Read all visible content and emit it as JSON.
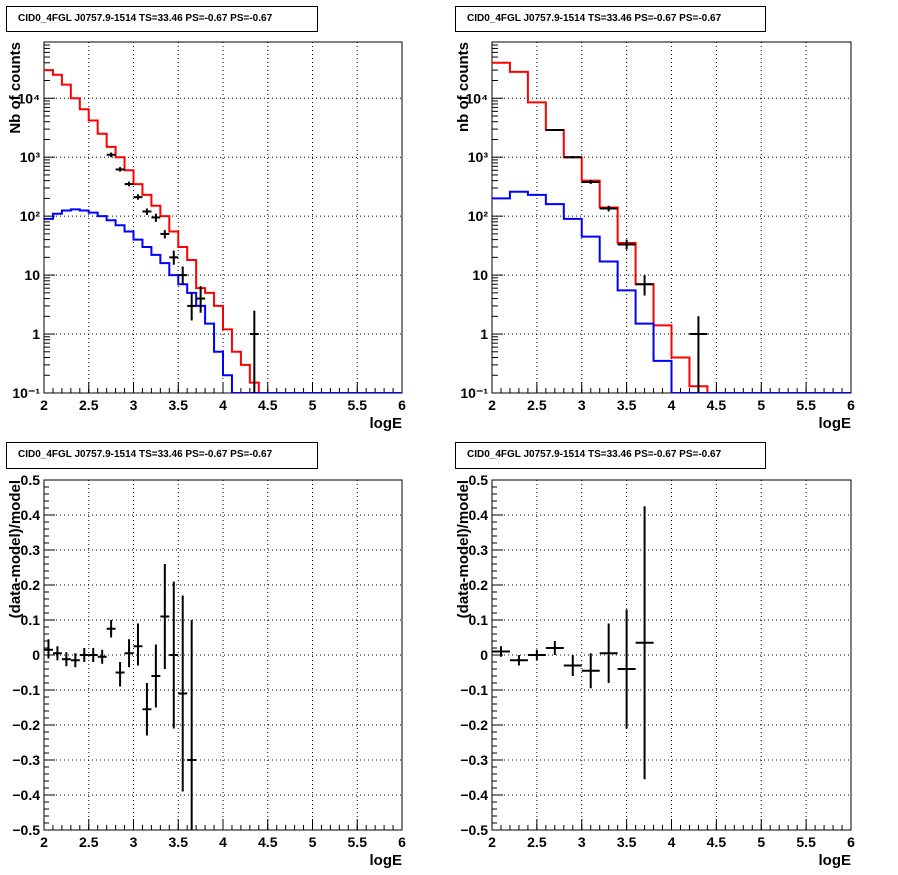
{
  "chart_data": [
    {
      "type": "line",
      "title": "CID0_4FGL J0757.9-1514 TS=33.46 PS=-0.67 PS=-0.67",
      "xlabel": "logE",
      "ylabel": "Nb of counts",
      "xlim": [
        2,
        6
      ],
      "ylim": [
        0.1,
        90000
      ],
      "log_y": true,
      "grid": true,
      "x_ticks": [
        "2",
        "2.5",
        "3",
        "3.5",
        "4",
        "4.5",
        "5",
        "5.5",
        "6"
      ],
      "y_ticks": [
        {
          "value": 0.1,
          "label": "10⁻¹"
        },
        {
          "value": 1,
          "label": "1"
        },
        {
          "value": 10,
          "label": "10"
        },
        {
          "value": 100,
          "label": "10²"
        },
        {
          "value": 1000,
          "label": "10³"
        },
        {
          "value": 10000,
          "label": "10⁴"
        }
      ],
      "bin_edges": [
        2.0,
        2.1,
        2.2,
        2.3,
        2.4,
        2.5,
        2.6,
        2.7,
        2.8,
        2.9,
        3.0,
        3.1,
        3.2,
        3.3,
        3.4,
        3.5,
        3.6,
        3.7,
        3.8,
        3.9,
        4.0,
        4.1,
        4.2,
        4.3,
        4.4,
        4.5,
        4.6,
        4.7,
        4.8,
        4.9,
        5.0,
        5.1,
        5.2,
        5.3,
        5.4,
        5.5,
        5.6,
        5.7,
        5.8,
        5.9,
        6.0
      ],
      "series": [
        {
          "color": "#ff0000",
          "style": "hist",
          "values": [
            30000,
            25000,
            17000,
            10000,
            6500,
            4200,
            2500,
            1500,
            1000,
            600,
            350,
            230,
            150,
            100,
            55,
            30,
            18,
            6,
            5,
            3,
            1.2,
            0.5,
            0.3,
            0.15,
            0.1,
            0.1,
            0.1,
            0.1,
            0.1,
            0.1,
            0.1,
            0.1,
            0.1,
            0.1,
            0.1,
            0.1,
            0.1,
            0.1,
            0.1,
            0.1
          ]
        },
        {
          "color": "#0000ff",
          "style": "hist",
          "values": [
            90,
            110,
            125,
            130,
            125,
            115,
            100,
            85,
            70,
            55,
            40,
            30,
            22,
            16,
            10,
            7,
            5,
            3,
            1.5,
            0.5,
            0.2,
            0.1,
            0.1,
            0.1,
            0.1,
            0.1,
            0.1,
            0.1,
            0.1,
            0.1,
            0.1,
            0.1,
            0.1,
            0.1,
            0.1,
            0.1,
            0.1,
            0.1,
            0.1,
            0.1
          ]
        },
        {
          "color": "#000000",
          "style": "errorbar",
          "points": [
            {
              "x": 2.75,
              "y": 1100,
              "lo": 1000,
              "hi": 1200,
              "xerr": 0.05
            },
            {
              "x": 2.85,
              "y": 620,
              "lo": 570,
              "hi": 680,
              "xerr": 0.05
            },
            {
              "x": 2.95,
              "y": 350,
              "lo": 320,
              "hi": 385,
              "xerr": 0.05
            },
            {
              "x": 3.05,
              "y": 210,
              "lo": 190,
              "hi": 235,
              "xerr": 0.05
            },
            {
              "x": 3.15,
              "y": 120,
              "lo": 105,
              "hi": 135,
              "xerr": 0.05
            },
            {
              "x": 3.25,
              "y": 95,
              "lo": 80,
              "hi": 110,
              "xerr": 0.05
            },
            {
              "x": 3.35,
              "y": 50,
              "lo": 42,
              "hi": 58,
              "xerr": 0.05
            },
            {
              "x": 3.45,
              "y": 20,
              "lo": 15,
              "hi": 26,
              "xerr": 0.05
            },
            {
              "x": 3.55,
              "y": 10,
              "lo": 7,
              "hi": 14,
              "xerr": 0.05
            },
            {
              "x": 3.65,
              "y": 3,
              "lo": 1.7,
              "hi": 5,
              "xerr": 0.05
            },
            {
              "x": 3.75,
              "y": 4,
              "lo": 2.3,
              "hi": 6.5,
              "xerr": 0.05
            },
            {
              "x": 4.35,
              "y": 1,
              "lo": 0.1,
              "hi": 2.5,
              "xerr": 0.05
            }
          ]
        }
      ]
    },
    {
      "type": "line",
      "title": "CID0_4FGL J0757.9-1514 TS=33.46 PS=-0.67 PS=-0.67",
      "xlabel": "logE",
      "ylabel": "nb of counts",
      "xlim": [
        2,
        6
      ],
      "ylim": [
        0.1,
        90000
      ],
      "log_y": true,
      "grid": true,
      "x_ticks": [
        "2",
        "2.5",
        "3",
        "3.5",
        "4",
        "4.5",
        "5",
        "5.5",
        "6"
      ],
      "y_ticks": [
        {
          "value": 0.1,
          "label": "10⁻¹"
        },
        {
          "value": 1,
          "label": "1"
        },
        {
          "value": 10,
          "label": "10"
        },
        {
          "value": 100,
          "label": "10²"
        },
        {
          "value": 1000,
          "label": "10³"
        },
        {
          "value": 10000,
          "label": "10⁴"
        }
      ],
      "bin_edges": [
        2.0,
        2.2,
        2.4,
        2.6,
        2.8,
        3.0,
        3.2,
        3.4,
        3.6,
        3.8,
        4.0,
        4.2,
        4.4,
        4.6,
        4.8,
        5.0,
        5.2,
        5.4,
        5.6,
        5.8,
        6.0
      ],
      "series": [
        {
          "color": "#ff0000",
          "style": "hist",
          "values": [
            40000,
            28000,
            8500,
            2900,
            1000,
            400,
            140,
            35,
            7,
            1.4,
            0.4,
            0.13,
            0.1,
            0.1,
            0.1,
            0.1,
            0.1,
            0.1,
            0.1,
            0.1
          ]
        },
        {
          "color": "#0000ff",
          "style": "hist",
          "values": [
            200,
            260,
            230,
            160,
            90,
            45,
            17,
            5.5,
            1.5,
            0.35,
            0.1,
            0.1,
            0.1,
            0.1,
            0.1,
            0.1,
            0.1,
            0.1,
            0.1,
            0.1
          ]
        },
        {
          "color": "#000000",
          "style": "errorbar",
          "points": [
            {
              "x": 2.7,
              "y": 2900,
              "lo": 2800,
              "hi": 3000,
              "xerr": 0.1
            },
            {
              "x": 2.9,
              "y": 1000,
              "lo": 950,
              "hi": 1050,
              "xerr": 0.1
            },
            {
              "x": 3.1,
              "y": 380,
              "lo": 350,
              "hi": 410,
              "xerr": 0.1
            },
            {
              "x": 3.3,
              "y": 135,
              "lo": 120,
              "hi": 150,
              "xerr": 0.1
            },
            {
              "x": 3.5,
              "y": 33,
              "lo": 27,
              "hi": 40,
              "xerr": 0.1
            },
            {
              "x": 3.7,
              "y": 7,
              "lo": 4.5,
              "hi": 10,
              "xerr": 0.1
            },
            {
              "x": 4.3,
              "y": 1,
              "lo": 0.1,
              "hi": 2,
              "xerr": 0.1
            }
          ]
        }
      ]
    },
    {
      "type": "scatter",
      "title": "CID0_4FGL J0757.9-1514 TS=33.46 PS=-0.67 PS=-0.67",
      "xlabel": "logE",
      "ylabel": "(data-model)/model",
      "xlim": [
        2,
        6
      ],
      "ylim": [
        -0.5,
        0.5
      ],
      "grid": true,
      "x_ticks": [
        "2",
        "2.5",
        "3",
        "3.5",
        "4",
        "4.5",
        "5",
        "5.5",
        "6"
      ],
      "y_ticks": [
        "−0.5",
        "−0.4",
        "−0.3",
        "−0.2",
        "−0.1",
        "0",
        "0.1",
        "0.2",
        "0.3",
        "0.4",
        "0.5"
      ],
      "points": [
        {
          "x": 2.05,
          "y": 0.015,
          "lo": -0.01,
          "hi": 0.045,
          "xerr": 0.05
        },
        {
          "x": 2.15,
          "y": 0.005,
          "lo": -0.015,
          "hi": 0.025,
          "xerr": 0.05
        },
        {
          "x": 2.25,
          "y": -0.012,
          "lo": -0.032,
          "hi": 0.008,
          "xerr": 0.05
        },
        {
          "x": 2.35,
          "y": -0.015,
          "lo": -0.035,
          "hi": 0.005,
          "xerr": 0.05
        },
        {
          "x": 2.45,
          "y": 0.0,
          "lo": -0.02,
          "hi": 0.02,
          "xerr": 0.05
        },
        {
          "x": 2.55,
          "y": 0.0,
          "lo": -0.02,
          "hi": 0.02,
          "xerr": 0.05
        },
        {
          "x": 2.65,
          "y": -0.005,
          "lo": -0.025,
          "hi": 0.015,
          "xerr": 0.05
        },
        {
          "x": 2.75,
          "y": 0.075,
          "lo": 0.05,
          "hi": 0.1,
          "xerr": 0.05
        },
        {
          "x": 2.85,
          "y": -0.05,
          "lo": -0.09,
          "hi": -0.02,
          "xerr": 0.05
        },
        {
          "x": 2.95,
          "y": 0.005,
          "lo": -0.035,
          "hi": 0.045,
          "xerr": 0.05
        },
        {
          "x": 3.05,
          "y": 0.025,
          "lo": -0.03,
          "hi": 0.09,
          "xerr": 0.05
        },
        {
          "x": 3.15,
          "y": -0.155,
          "lo": -0.23,
          "hi": -0.08,
          "xerr": 0.05
        },
        {
          "x": 3.25,
          "y": -0.06,
          "lo": -0.15,
          "hi": 0.03,
          "xerr": 0.05
        },
        {
          "x": 3.35,
          "y": 0.11,
          "lo": -0.04,
          "hi": 0.26,
          "xerr": 0.05
        },
        {
          "x": 3.45,
          "y": 0.0,
          "lo": -0.21,
          "hi": 0.21,
          "xerr": 0.05
        },
        {
          "x": 3.55,
          "y": -0.11,
          "lo": -0.39,
          "hi": 0.17,
          "xerr": 0.05
        },
        {
          "x": 3.65,
          "y": -0.3,
          "lo": -0.5,
          "hi": 0.1,
          "xerr": 0.05
        }
      ]
    },
    {
      "type": "scatter",
      "title": "CID0_4FGL J0757.9-1514 TS=33.46 PS=-0.67 PS=-0.67",
      "xlabel": "logE",
      "ylabel": "(data-model)/model",
      "xlim": [
        2,
        6
      ],
      "ylim": [
        -0.5,
        0.5
      ],
      "grid": true,
      "x_ticks": [
        "2",
        "2.5",
        "3",
        "3.5",
        "4",
        "4.5",
        "5",
        "5.5",
        "6"
      ],
      "y_ticks": [
        "−0.5",
        "−0.4",
        "−0.3",
        "−0.2",
        "−0.1",
        "0",
        "0.1",
        "0.2",
        "0.3",
        "0.4",
        "0.5"
      ],
      "points": [
        {
          "x": 2.1,
          "y": 0.01,
          "lo": -0.005,
          "hi": 0.025,
          "xerr": 0.1
        },
        {
          "x": 2.3,
          "y": -0.015,
          "lo": -0.03,
          "hi": 0.0,
          "xerr": 0.1
        },
        {
          "x": 2.5,
          "y": 0.0,
          "lo": -0.015,
          "hi": 0.015,
          "xerr": 0.1
        },
        {
          "x": 2.7,
          "y": 0.02,
          "lo": 0.0,
          "hi": 0.04,
          "xerr": 0.1
        },
        {
          "x": 2.9,
          "y": -0.03,
          "lo": -0.06,
          "hi": 0.0,
          "xerr": 0.1
        },
        {
          "x": 3.1,
          "y": -0.045,
          "lo": -0.095,
          "hi": 0.005,
          "xerr": 0.1
        },
        {
          "x": 3.3,
          "y": 0.005,
          "lo": -0.08,
          "hi": 0.09,
          "xerr": 0.1
        },
        {
          "x": 3.5,
          "y": -0.04,
          "lo": -0.21,
          "hi": 0.13,
          "xerr": 0.1
        },
        {
          "x": 3.7,
          "y": 0.035,
          "lo": -0.355,
          "hi": 0.425,
          "xerr": 0.1
        }
      ]
    }
  ]
}
